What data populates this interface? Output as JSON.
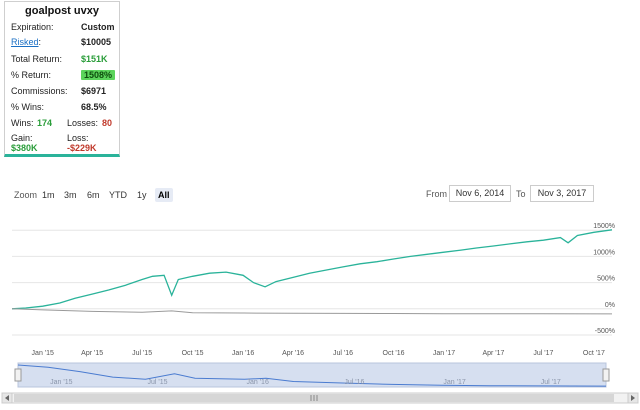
{
  "card": {
    "title": "goalpost uvxy",
    "expiration_label": "Expiration:",
    "expiration_value": "Custom",
    "risked_label": "Risked",
    "risked_colon": ":",
    "risked_value": "$10005",
    "total_return_label": "Total Return:",
    "total_return_value": "$151K",
    "pct_return_label": "% Return:",
    "pct_return_value": "1508%",
    "commissions_label": "Commissions:",
    "commissions_value": "$6971",
    "pct_wins_label": "% Wins:",
    "pct_wins_value": "68.5%",
    "wins_label": "Wins:",
    "wins_value": "174",
    "losses_label": "Losses:",
    "losses_value": "80",
    "gain_label": "Gain:",
    "gain_value": "$380K",
    "loss_label": "Loss:",
    "loss_value": "-$229K",
    "colors": {
      "accent": "#2ab39a",
      "positive": "#2a9d3a",
      "negative": "#c0392b",
      "badge": "#5bd45b"
    }
  },
  "toolbar": {
    "zoom_label": "Zoom",
    "zoom_buttons": [
      "1m",
      "3m",
      "6m",
      "YTD",
      "1y",
      "All"
    ],
    "active_zoom": "All",
    "from_label": "From",
    "from_value": "Nov 6, 2014",
    "to_label": "To",
    "to_value": "Nov 3, 2017"
  },
  "chart_data": {
    "type": "line",
    "x_start": "2014-11-06",
    "x_end": "2017-11-03",
    "x_tick_labels": [
      "Jan '15",
      "Apr '15",
      "Jul '15",
      "Oct '15",
      "Jan '16",
      "Apr '16",
      "Jul '16",
      "Oct '16",
      "Jan '17",
      "Apr '17",
      "Jul '17",
      "Oct '17"
    ],
    "y_tick_labels": [
      "-500%",
      "0%",
      "500%",
      "1000%",
      "1500%"
    ],
    "ylim": [
      -500,
      1600
    ],
    "grid": true,
    "series": [
      {
        "color": "#2ab39a",
        "points": [
          [
            "2014-11-06",
            0
          ],
          [
            "2014-12-01",
            15
          ],
          [
            "2015-01-01",
            50
          ],
          [
            "2015-02-01",
            110
          ],
          [
            "2015-03-01",
            200
          ],
          [
            "2015-04-01",
            280
          ],
          [
            "2015-05-01",
            360
          ],
          [
            "2015-06-01",
            450
          ],
          [
            "2015-07-01",
            560
          ],
          [
            "2015-07-20",
            620
          ],
          [
            "2015-08-10",
            640
          ],
          [
            "2015-08-24",
            260
          ],
          [
            "2015-09-05",
            560
          ],
          [
            "2015-10-01",
            620
          ],
          [
            "2015-11-01",
            680
          ],
          [
            "2015-12-01",
            700
          ],
          [
            "2016-01-01",
            640
          ],
          [
            "2016-01-20",
            500
          ],
          [
            "2016-02-10",
            420
          ],
          [
            "2016-03-01",
            520
          ],
          [
            "2016-04-01",
            600
          ],
          [
            "2016-05-01",
            680
          ],
          [
            "2016-06-01",
            740
          ],
          [
            "2016-07-01",
            800
          ],
          [
            "2016-08-01",
            860
          ],
          [
            "2016-09-01",
            900
          ],
          [
            "2016-10-01",
            950
          ],
          [
            "2016-11-01",
            1000
          ],
          [
            "2016-12-01",
            1040
          ],
          [
            "2017-01-01",
            1080
          ],
          [
            "2017-02-01",
            1120
          ],
          [
            "2017-03-01",
            1160
          ],
          [
            "2017-04-01",
            1200
          ],
          [
            "2017-05-01",
            1240
          ],
          [
            "2017-06-01",
            1280
          ],
          [
            "2017-07-01",
            1310
          ],
          [
            "2017-08-01",
            1360
          ],
          [
            "2017-08-15",
            1260
          ],
          [
            "2017-09-01",
            1400
          ],
          [
            "2017-10-01",
            1460
          ],
          [
            "2017-11-03",
            1508
          ]
        ]
      },
      {
        "color": "#9a9a9a",
        "points": [
          [
            "2014-11-06",
            0
          ],
          [
            "2015-01-01",
            -20
          ],
          [
            "2015-04-01",
            -50
          ],
          [
            "2015-07-01",
            -65
          ],
          [
            "2015-08-24",
            -40
          ],
          [
            "2015-10-01",
            -75
          ],
          [
            "2016-01-01",
            -80
          ],
          [
            "2016-04-01",
            -85
          ],
          [
            "2016-07-01",
            -88
          ],
          [
            "2016-10-01",
            -90
          ],
          [
            "2017-01-01",
            -93
          ],
          [
            "2017-04-01",
            -95
          ],
          [
            "2017-07-01",
            -96
          ],
          [
            "2017-11-03",
            -98
          ]
        ]
      }
    ],
    "navigator": {
      "x_tick_labels": [
        "Jan '15",
        "Jul '15",
        "Jan '16",
        "Jul '16",
        "Jan '17",
        "Jul '17"
      ],
      "fill_color": "#d6dff0",
      "line_color": "#4a7bd0",
      "points": [
        [
          "2014-11-06",
          1.0
        ],
        [
          "2015-01-01",
          0.9
        ],
        [
          "2015-03-01",
          0.7
        ],
        [
          "2015-05-01",
          0.45
        ],
        [
          "2015-07-01",
          0.35
        ],
        [
          "2015-08-24",
          0.6
        ],
        [
          "2015-10-01",
          0.4
        ],
        [
          "2016-01-01",
          0.35
        ],
        [
          "2016-02-10",
          0.4
        ],
        [
          "2016-04-01",
          0.25
        ],
        [
          "2016-07-01",
          0.18
        ],
        [
          "2016-10-01",
          0.12
        ],
        [
          "2017-01-01",
          0.08
        ],
        [
          "2017-04-01",
          0.06
        ],
        [
          "2017-07-01",
          0.05
        ],
        [
          "2017-11-03",
          0.04
        ]
      ]
    }
  }
}
